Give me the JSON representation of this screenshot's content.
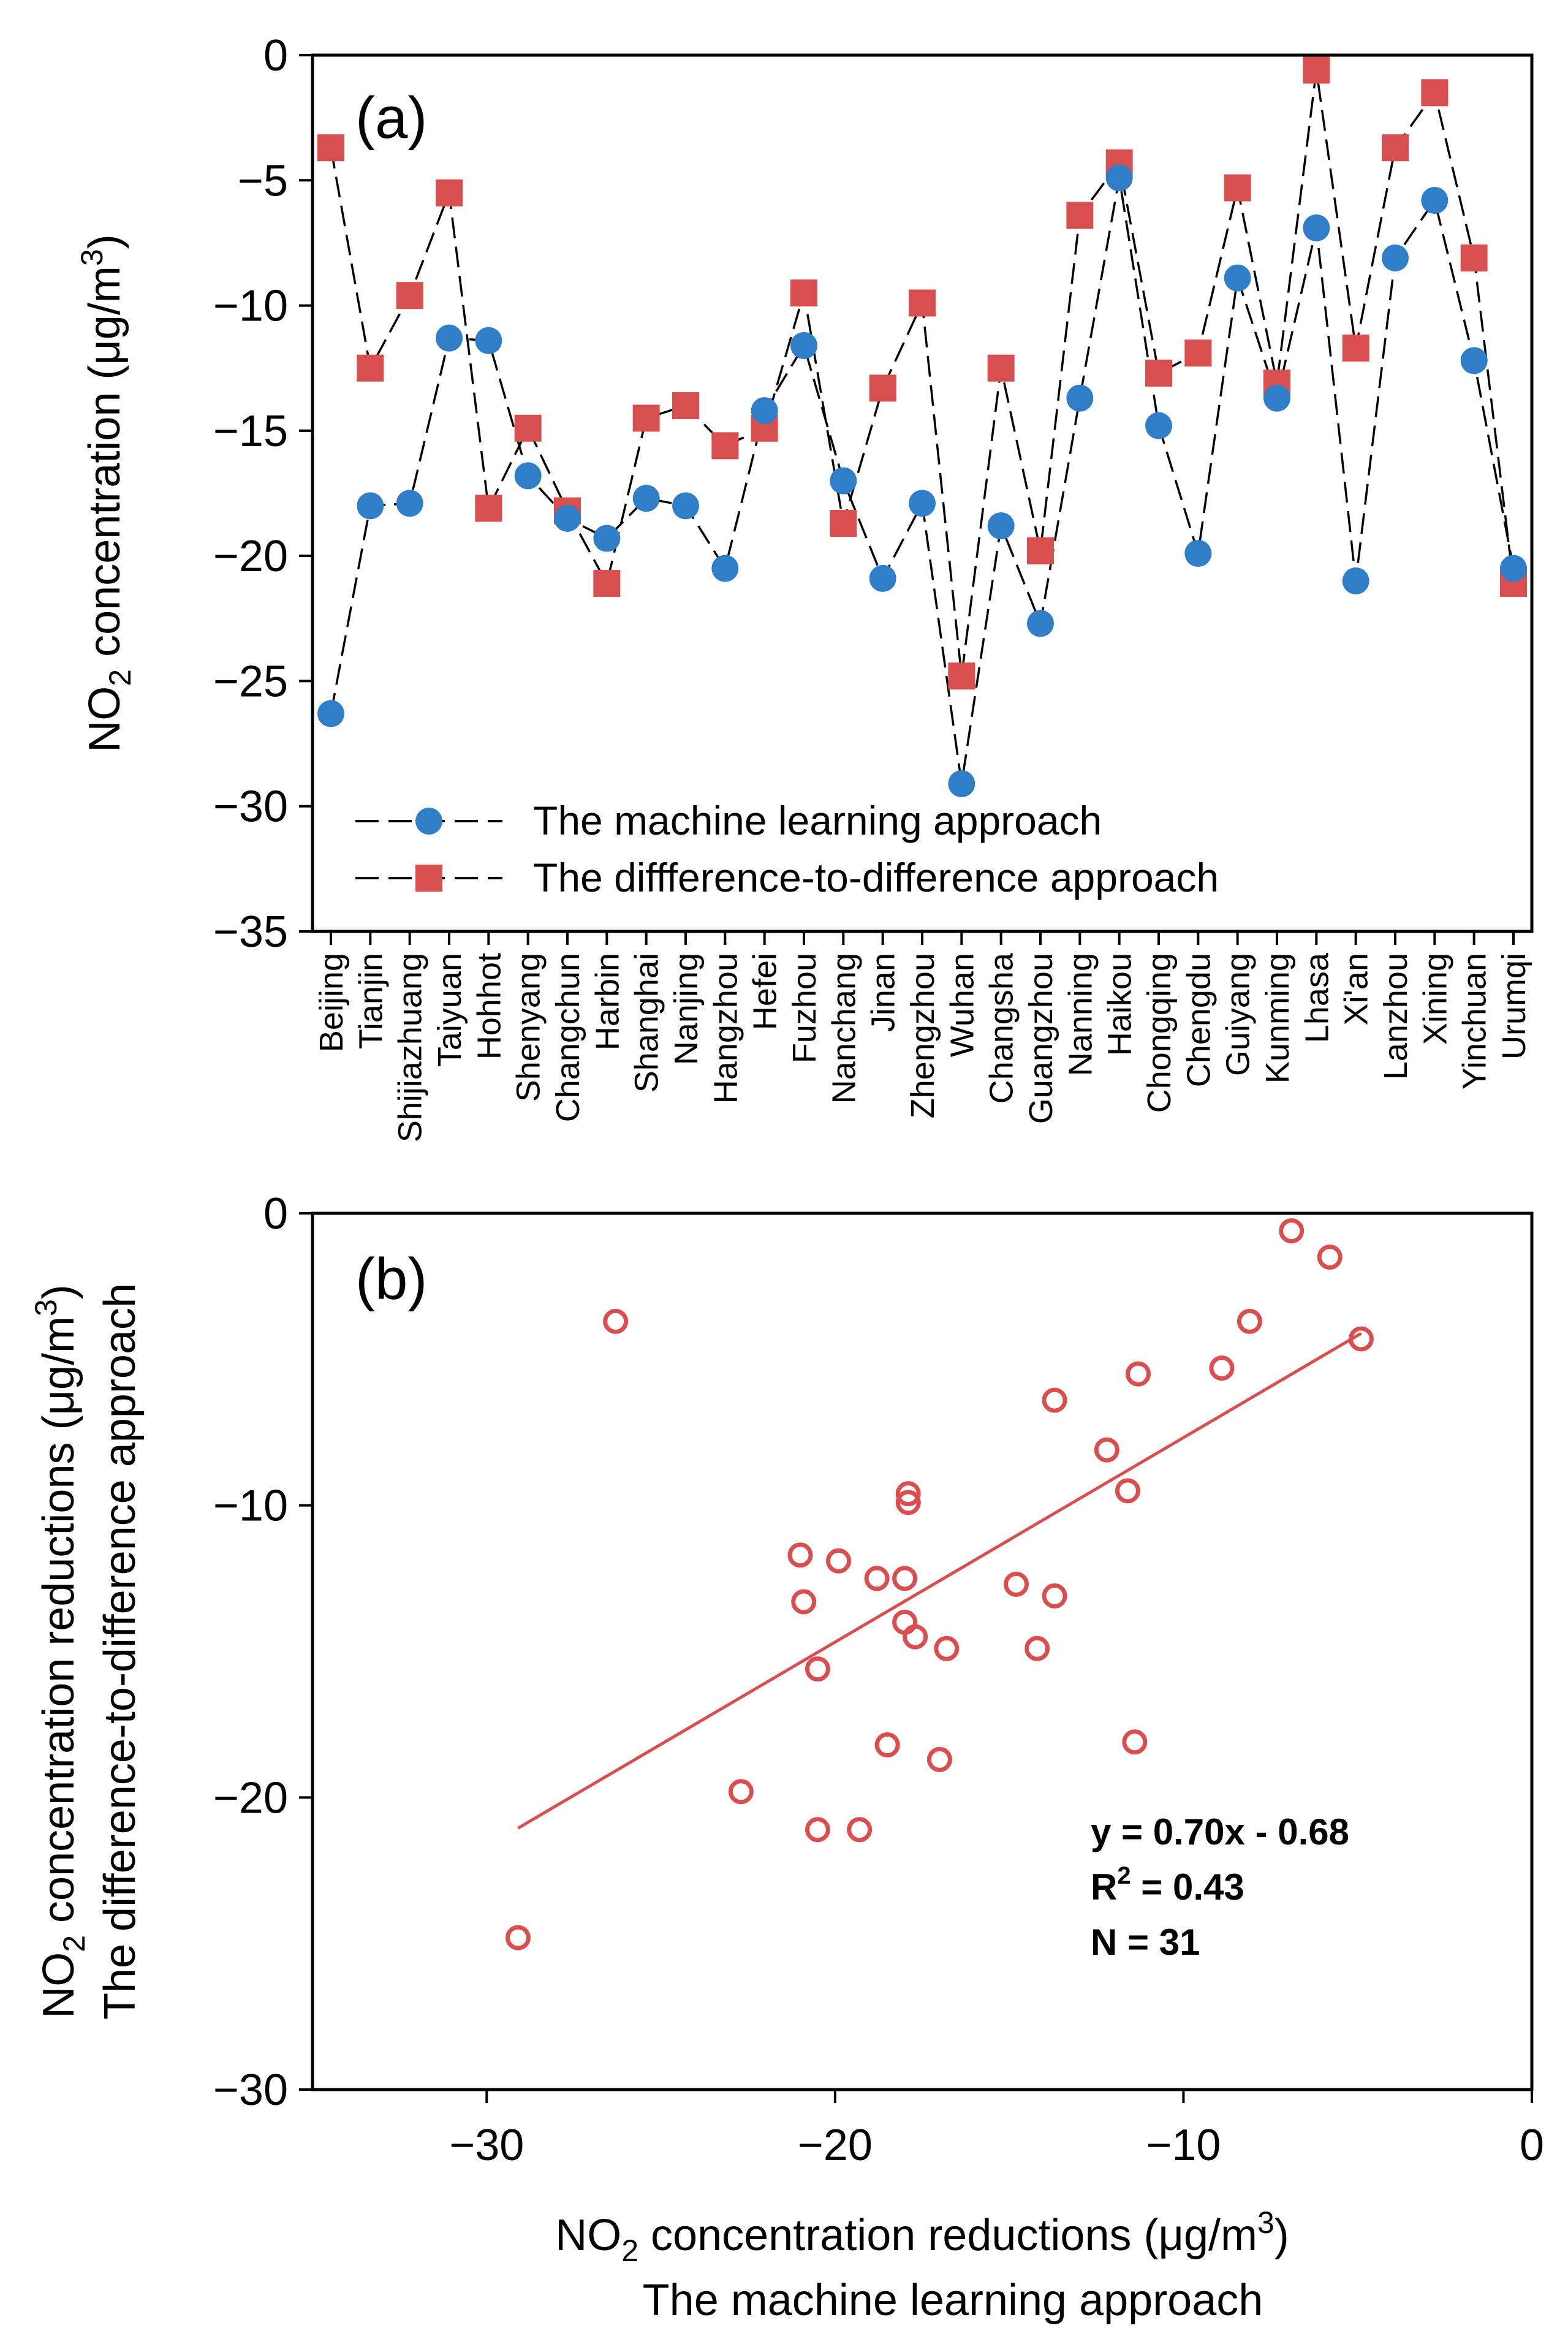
{
  "chart_data": [
    {
      "type": "line",
      "panel_label": "(a)",
      "ylabel": {
        "main": "NO",
        "sub": "2",
        "rest": " concentration (μg/m",
        "sup": "3",
        "close": ")"
      },
      "ylim": [
        -35,
        0
      ],
      "yticks": [
        0,
        -5,
        -10,
        -15,
        -20,
        -25,
        -30,
        -35
      ],
      "ytick_labels": [
        "0",
        "−5",
        "−10",
        "−15",
        "−20",
        "−25",
        "−30",
        "−35"
      ],
      "categories": [
        "Beijing",
        "Tianjin",
        "Shijiazhuang",
        "Taiyuan",
        "Hohhot",
        "Shenyang",
        "Changchun",
        "Harbin",
        "Shanghai",
        "Nanjing",
        "Hangzhou",
        "Hefei",
        "Fuzhou",
        "Nanchang",
        "Jinan",
        "Zhengzhou",
        "Wuhan",
        "Changsha",
        "Guangzhou",
        "Nanning",
        "Haikou",
        "Chongqing",
        "Chengdu",
        "Guiyang",
        "Kunming",
        "Lhasa",
        "Xi'an",
        "Lanzhou",
        "Xining",
        "Yinchuan",
        "Urumqi"
      ],
      "series": [
        {
          "name": "The machine learning approach",
          "marker": "circle",
          "color": "#2f7ec7",
          "values": [
            -26.3,
            -18.0,
            -17.9,
            -11.3,
            -11.4,
            -16.8,
            -18.5,
            -19.3,
            -17.7,
            -18.0,
            -20.5,
            -14.2,
            -11.6,
            -17.0,
            -20.9,
            -17.9,
            -29.1,
            -18.8,
            -22.7,
            -13.7,
            -4.9,
            -14.8,
            -19.9,
            -8.9,
            -13.7,
            -6.9,
            -21.0,
            -8.1,
            -5.8,
            -12.2,
            -20.5
          ]
        },
        {
          "name": "The diffference-to-difference approach",
          "marker": "square",
          "color": "#d94f4f",
          "values": [
            -3.7,
            -12.5,
            -9.6,
            -5.5,
            -18.1,
            -14.9,
            -18.2,
            -21.1,
            -14.5,
            -14.0,
            -15.6,
            -14.9,
            -9.5,
            -18.7,
            -13.3,
            -9.9,
            -24.8,
            -12.5,
            -19.8,
            -6.4,
            -4.3,
            -12.7,
            -11.9,
            -5.3,
            -13.1,
            -0.6,
            -11.7,
            -3.7,
            -1.5,
            -8.1,
            -21.1
          ]
        }
      ]
    },
    {
      "type": "scatter",
      "panel_label": "(b)",
      "xlim": [
        -35,
        0
      ],
      "ylim": [
        -30,
        0
      ],
      "xticks": [
        -30,
        -20,
        -10,
        0
      ],
      "xtick_labels": [
        "−30",
        "−20",
        "−10",
        "0"
      ],
      "yticks": [
        0,
        -10,
        -20,
        -30
      ],
      "ytick_labels": [
        "0",
        "−10",
        "−20",
        "−30"
      ],
      "xlabel": {
        "main": "NO",
        "sub": "2",
        "rest": " concentration reductions (μg/m",
        "sup": "3",
        "close": ")",
        "line2": "The machine learning approach"
      },
      "ylabel": {
        "main": "NO",
        "sub": "2",
        "rest": " concentration reductions (μg/m",
        "sup": "3",
        "close": ")",
        "line2": "The difference-to-difference approach"
      },
      "color": "#d94f4f",
      "fit": {
        "slope": 0.7,
        "intercept": -0.68,
        "x_range": [
          -29.1,
          -4.9
        ]
      },
      "annotation": {
        "equation": "y = 0.70x - 0.68",
        "r2_prefix": "R",
        "r2_sup": "2",
        "r2_value": " = 0.43",
        "n": "N = 31"
      }
    }
  ]
}
